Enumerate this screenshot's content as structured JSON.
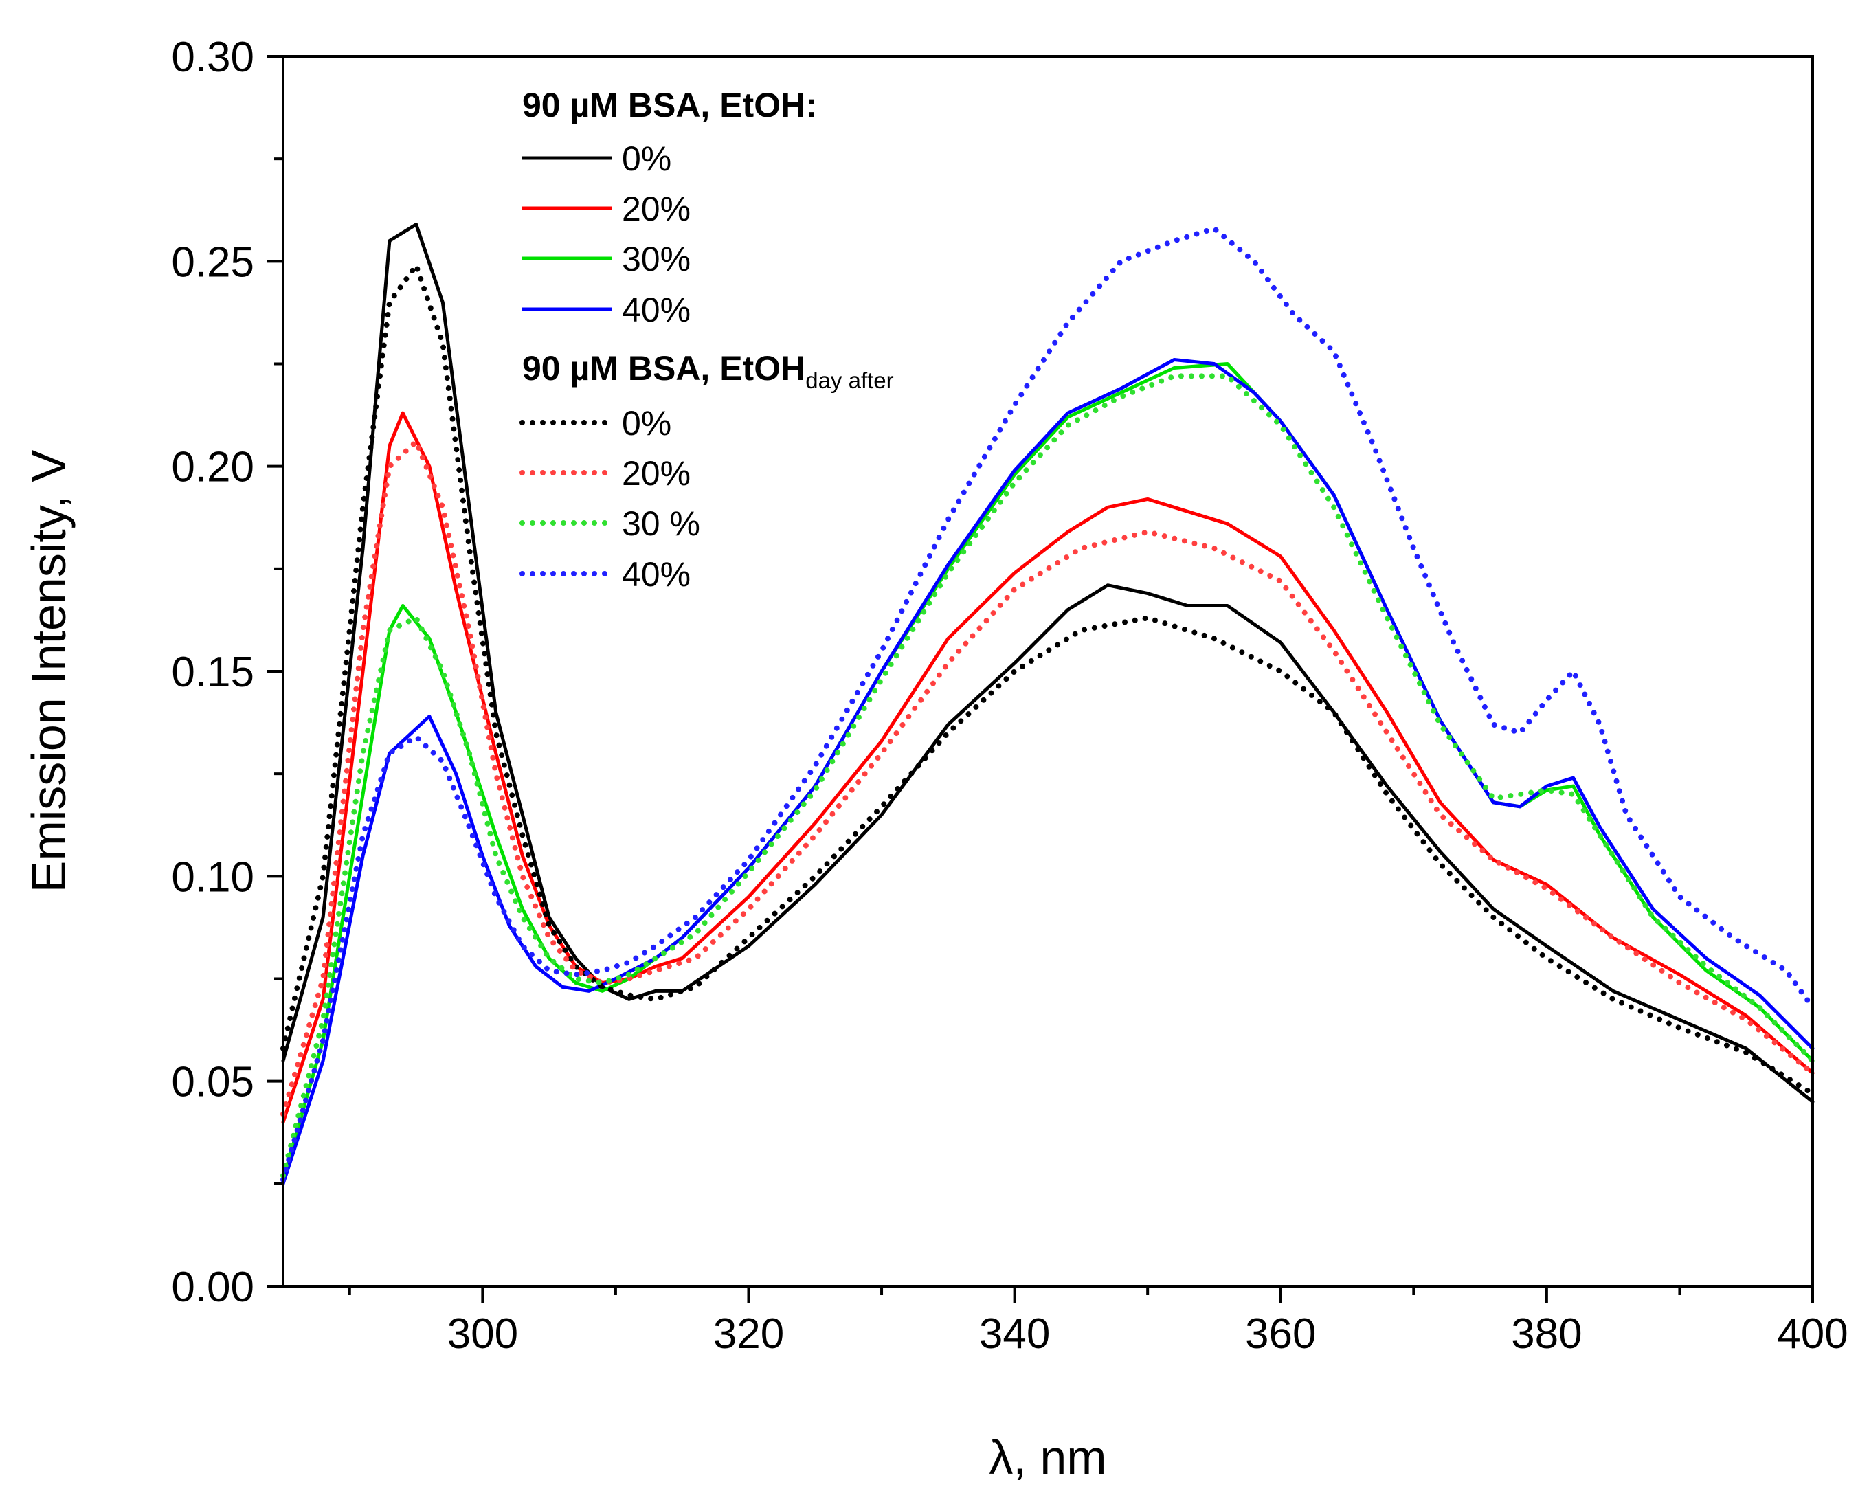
{
  "chart_data": {
    "type": "line",
    "xlabel": "λ, nm",
    "ylabel": "Emission Intensity, V",
    "xlim": [
      285,
      400
    ],
    "ylim": [
      0.0,
      0.3
    ],
    "x_ticks": [
      300,
      320,
      340,
      360,
      380,
      400
    ],
    "x_tick_labels": [
      "300",
      "320",
      "340",
      "360",
      "380",
      "400"
    ],
    "y_ticks": [
      0.0,
      0.05,
      0.1,
      0.15,
      0.2,
      0.25,
      0.3
    ],
    "y_tick_labels": [
      "0.00",
      "0.05",
      "0.10",
      "0.15",
      "0.20",
      "0.25",
      "0.30"
    ],
    "grid": false,
    "legend": {
      "placement": "top-left",
      "group1_title": "90 µM BSA, EtOH:",
      "group2_title_main": "90 µM BSA, EtOH",
      "group2_title_sub": "day after"
    },
    "series": [
      {
        "name": "0%",
        "group": 1,
        "style": "solid",
        "color": "#000000",
        "points": [
          [
            285,
            0.055
          ],
          [
            288,
            0.09
          ],
          [
            291,
            0.18
          ],
          [
            293,
            0.255
          ],
          [
            295,
            0.259
          ],
          [
            297,
            0.24
          ],
          [
            299,
            0.19
          ],
          [
            301,
            0.14
          ],
          [
            303,
            0.115
          ],
          [
            305,
            0.09
          ],
          [
            307,
            0.08
          ],
          [
            309,
            0.073
          ],
          [
            311,
            0.07
          ],
          [
            313,
            0.072
          ],
          [
            315,
            0.072
          ],
          [
            320,
            0.083
          ],
          [
            325,
            0.098
          ],
          [
            330,
            0.115
          ],
          [
            335,
            0.137
          ],
          [
            340,
            0.152
          ],
          [
            344,
            0.165
          ],
          [
            347,
            0.171
          ],
          [
            350,
            0.169
          ],
          [
            353,
            0.166
          ],
          [
            356,
            0.166
          ],
          [
            360,
            0.157
          ],
          [
            364,
            0.14
          ],
          [
            368,
            0.122
          ],
          [
            372,
            0.106
          ],
          [
            376,
            0.092
          ],
          [
            380,
            0.083
          ],
          [
            385,
            0.072
          ],
          [
            390,
            0.065
          ],
          [
            395,
            0.058
          ],
          [
            400,
            0.045
          ]
        ]
      },
      {
        "name": "20%",
        "group": 1,
        "style": "solid",
        "color": "#ff0000",
        "points": [
          [
            285,
            0.04
          ],
          [
            288,
            0.07
          ],
          [
            291,
            0.15
          ],
          [
            293,
            0.205
          ],
          [
            294,
            0.213
          ],
          [
            296,
            0.2
          ],
          [
            298,
            0.17
          ],
          [
            301,
            0.13
          ],
          [
            303,
            0.105
          ],
          [
            305,
            0.088
          ],
          [
            307,
            0.078
          ],
          [
            309,
            0.074
          ],
          [
            311,
            0.075
          ],
          [
            313,
            0.078
          ],
          [
            315,
            0.08
          ],
          [
            320,
            0.095
          ],
          [
            325,
            0.113
          ],
          [
            330,
            0.133
          ],
          [
            335,
            0.158
          ],
          [
            340,
            0.174
          ],
          [
            344,
            0.184
          ],
          [
            347,
            0.19
          ],
          [
            350,
            0.192
          ],
          [
            353,
            0.189
          ],
          [
            356,
            0.186
          ],
          [
            360,
            0.178
          ],
          [
            364,
            0.16
          ],
          [
            368,
            0.14
          ],
          [
            372,
            0.118
          ],
          [
            376,
            0.104
          ],
          [
            380,
            0.098
          ],
          [
            385,
            0.085
          ],
          [
            390,
            0.076
          ],
          [
            395,
            0.066
          ],
          [
            400,
            0.052
          ]
        ]
      },
      {
        "name": "30%",
        "group": 1,
        "style": "solid",
        "color": "#00e000",
        "points": [
          [
            285,
            0.026
          ],
          [
            288,
            0.06
          ],
          [
            291,
            0.12
          ],
          [
            293,
            0.16
          ],
          [
            294,
            0.166
          ],
          [
            296,
            0.158
          ],
          [
            298,
            0.14
          ],
          [
            301,
            0.11
          ],
          [
            303,
            0.092
          ],
          [
            305,
            0.08
          ],
          [
            307,
            0.074
          ],
          [
            309,
            0.072
          ],
          [
            311,
            0.075
          ],
          [
            313,
            0.08
          ],
          [
            315,
            0.085
          ],
          [
            320,
            0.102
          ],
          [
            325,
            0.122
          ],
          [
            330,
            0.15
          ],
          [
            335,
            0.175
          ],
          [
            340,
            0.198
          ],
          [
            344,
            0.212
          ],
          [
            348,
            0.218
          ],
          [
            352,
            0.224
          ],
          [
            356,
            0.225
          ],
          [
            360,
            0.211
          ],
          [
            364,
            0.193
          ],
          [
            368,
            0.165
          ],
          [
            372,
            0.138
          ],
          [
            376,
            0.118
          ],
          [
            378,
            0.117
          ],
          [
            380,
            0.121
          ],
          [
            382,
            0.122
          ],
          [
            384,
            0.11
          ],
          [
            388,
            0.09
          ],
          [
            392,
            0.077
          ],
          [
            396,
            0.068
          ],
          [
            400,
            0.055
          ]
        ]
      },
      {
        "name": "40%",
        "group": 1,
        "style": "solid",
        "color": "#0000ff",
        "points": [
          [
            285,
            0.025
          ],
          [
            288,
            0.055
          ],
          [
            291,
            0.105
          ],
          [
            293,
            0.13
          ],
          [
            296,
            0.139
          ],
          [
            298,
            0.125
          ],
          [
            300,
            0.105
          ],
          [
            302,
            0.088
          ],
          [
            304,
            0.078
          ],
          [
            306,
            0.073
          ],
          [
            308,
            0.072
          ],
          [
            310,
            0.075
          ],
          [
            313,
            0.08
          ],
          [
            315,
            0.085
          ],
          [
            320,
            0.102
          ],
          [
            325,
            0.122
          ],
          [
            330,
            0.15
          ],
          [
            335,
            0.176
          ],
          [
            340,
            0.199
          ],
          [
            344,
            0.213
          ],
          [
            348,
            0.219
          ],
          [
            352,
            0.226
          ],
          [
            355,
            0.225
          ],
          [
            358,
            0.218
          ],
          [
            360,
            0.211
          ],
          [
            364,
            0.193
          ],
          [
            368,
            0.165
          ],
          [
            372,
            0.138
          ],
          [
            376,
            0.118
          ],
          [
            378,
            0.117
          ],
          [
            380,
            0.122
          ],
          [
            382,
            0.124
          ],
          [
            384,
            0.112
          ],
          [
            388,
            0.092
          ],
          [
            392,
            0.08
          ],
          [
            396,
            0.071
          ],
          [
            400,
            0.058
          ]
        ]
      },
      {
        "name": "0%",
        "group": 2,
        "style": "dotted",
        "color": "#000000",
        "points": [
          [
            285,
            0.058
          ],
          [
            288,
            0.1
          ],
          [
            291,
            0.19
          ],
          [
            293,
            0.24
          ],
          [
            295,
            0.249
          ],
          [
            297,
            0.23
          ],
          [
            299,
            0.18
          ],
          [
            301,
            0.135
          ],
          [
            303,
            0.11
          ],
          [
            305,
            0.088
          ],
          [
            307,
            0.078
          ],
          [
            309,
            0.073
          ],
          [
            311,
            0.071
          ],
          [
            313,
            0.07
          ],
          [
            316,
            0.073
          ],
          [
            320,
            0.085
          ],
          [
            325,
            0.1
          ],
          [
            330,
            0.117
          ],
          [
            335,
            0.135
          ],
          [
            340,
            0.15
          ],
          [
            345,
            0.16
          ],
          [
            350,
            0.163
          ],
          [
            355,
            0.158
          ],
          [
            360,
            0.15
          ],
          [
            364,
            0.14
          ],
          [
            368,
            0.12
          ],
          [
            372,
            0.103
          ],
          [
            376,
            0.09
          ],
          [
            380,
            0.08
          ],
          [
            385,
            0.07
          ],
          [
            390,
            0.063
          ],
          [
            395,
            0.057
          ],
          [
            400,
            0.047
          ]
        ]
      },
      {
        "name": "20%",
        "group": 2,
        "style": "dotted",
        "color": "#ff4040",
        "points": [
          [
            285,
            0.042
          ],
          [
            288,
            0.075
          ],
          [
            291,
            0.16
          ],
          [
            293,
            0.2
          ],
          [
            295,
            0.206
          ],
          [
            297,
            0.19
          ],
          [
            299,
            0.16
          ],
          [
            301,
            0.125
          ],
          [
            303,
            0.1
          ],
          [
            305,
            0.085
          ],
          [
            307,
            0.077
          ],
          [
            309,
            0.074
          ],
          [
            311,
            0.075
          ],
          [
            313,
            0.077
          ],
          [
            316,
            0.08
          ],
          [
            320,
            0.092
          ],
          [
            325,
            0.11
          ],
          [
            330,
            0.13
          ],
          [
            335,
            0.152
          ],
          [
            340,
            0.17
          ],
          [
            345,
            0.18
          ],
          [
            350,
            0.184
          ],
          [
            355,
            0.18
          ],
          [
            360,
            0.172
          ],
          [
            364,
            0.155
          ],
          [
            368,
            0.135
          ],
          [
            372,
            0.115
          ],
          [
            376,
            0.104
          ],
          [
            380,
            0.097
          ],
          [
            385,
            0.085
          ],
          [
            390,
            0.074
          ],
          [
            395,
            0.065
          ],
          [
            400,
            0.052
          ]
        ]
      },
      {
        "name": "30 %",
        "group": 2,
        "style": "dotted",
        "color": "#30e030",
        "points": [
          [
            285,
            0.027
          ],
          [
            288,
            0.065
          ],
          [
            291,
            0.13
          ],
          [
            293,
            0.16
          ],
          [
            295,
            0.163
          ],
          [
            297,
            0.15
          ],
          [
            299,
            0.13
          ],
          [
            301,
            0.105
          ],
          [
            303,
            0.09
          ],
          [
            305,
            0.08
          ],
          [
            307,
            0.075
          ],
          [
            309,
            0.074
          ],
          [
            311,
            0.076
          ],
          [
            313,
            0.08
          ],
          [
            316,
            0.086
          ],
          [
            320,
            0.101
          ],
          [
            325,
            0.121
          ],
          [
            330,
            0.148
          ],
          [
            335,
            0.174
          ],
          [
            340,
            0.196
          ],
          [
            344,
            0.21
          ],
          [
            348,
            0.217
          ],
          [
            352,
            0.222
          ],
          [
            356,
            0.222
          ],
          [
            360,
            0.21
          ],
          [
            364,
            0.19
          ],
          [
            368,
            0.163
          ],
          [
            372,
            0.137
          ],
          [
            376,
            0.119
          ],
          [
            380,
            0.121
          ],
          [
            382,
            0.12
          ],
          [
            384,
            0.11
          ],
          [
            388,
            0.09
          ],
          [
            392,
            0.078
          ],
          [
            396,
            0.068
          ],
          [
            400,
            0.055
          ]
        ]
      },
      {
        "name": "40%",
        "group": 2,
        "style": "dotted",
        "color": "#2020ff",
        "points": [
          [
            285,
            0.026
          ],
          [
            288,
            0.06
          ],
          [
            291,
            0.11
          ],
          [
            293,
            0.13
          ],
          [
            295,
            0.134
          ],
          [
            297,
            0.128
          ],
          [
            299,
            0.112
          ],
          [
            301,
            0.095
          ],
          [
            303,
            0.083
          ],
          [
            305,
            0.077
          ],
          [
            307,
            0.076
          ],
          [
            309,
            0.077
          ],
          [
            311,
            0.079
          ],
          [
            313,
            0.083
          ],
          [
            316,
            0.09
          ],
          [
            320,
            0.104
          ],
          [
            325,
            0.127
          ],
          [
            330,
            0.155
          ],
          [
            335,
            0.187
          ],
          [
            340,
            0.215
          ],
          [
            344,
            0.235
          ],
          [
            348,
            0.25
          ],
          [
            352,
            0.255
          ],
          [
            355,
            0.258
          ],
          [
            358,
            0.25
          ],
          [
            361,
            0.237
          ],
          [
            364,
            0.228
          ],
          [
            367,
            0.205
          ],
          [
            370,
            0.18
          ],
          [
            373,
            0.157
          ],
          [
            376,
            0.137
          ],
          [
            378,
            0.135
          ],
          [
            380,
            0.143
          ],
          [
            382,
            0.15
          ],
          [
            384,
            0.137
          ],
          [
            386,
            0.115
          ],
          [
            390,
            0.095
          ],
          [
            394,
            0.085
          ],
          [
            398,
            0.077
          ],
          [
            400,
            0.068
          ]
        ]
      }
    ]
  }
}
